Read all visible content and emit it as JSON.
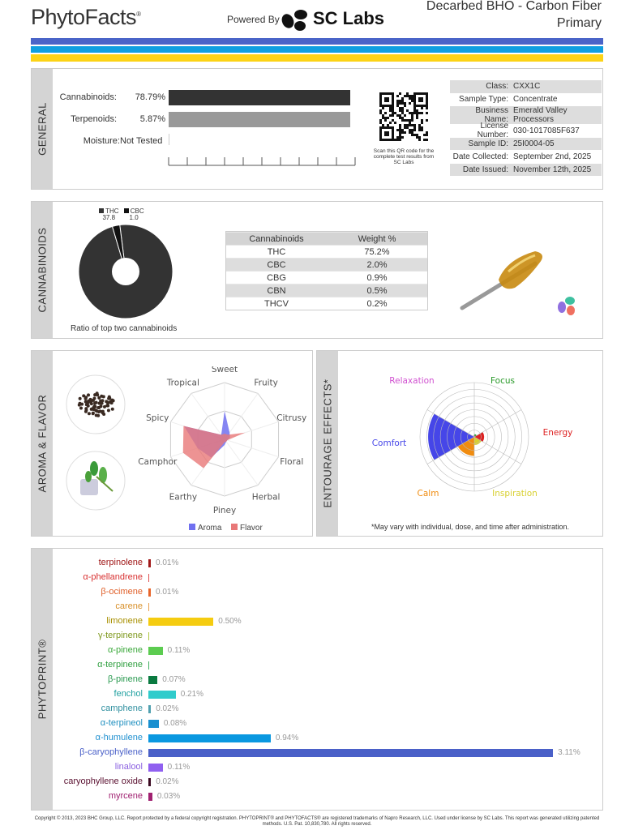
{
  "header": {
    "brand": "PhytoFacts",
    "brand_mark": "®",
    "powered_by": "Powered By",
    "lab_logo": "SC Labs",
    "product_name": "Decarbed BHO - Carbon Fiber",
    "product_subtitle": "Primary"
  },
  "stripes": [
    "#4a64c8",
    "#0f9fe0",
    "#fcd316"
  ],
  "general": {
    "title": "GENERAL",
    "bars": [
      {
        "label": "Cannabinoids:",
        "value": "78.79%",
        "fraction": 0.7879,
        "color": "#333333"
      },
      {
        "label": "Terpenoids:",
        "value": "5.87%",
        "fraction": 0.0587,
        "color": "#999999"
      },
      {
        "label": "Moisture:",
        "value": "Not Tested",
        "fraction": 0
      }
    ],
    "qr_caption": "Scan this QR code for the complete test results from SC Labs",
    "info": [
      {
        "k": "Class:",
        "v": "CXX1C"
      },
      {
        "k": "Sample Type:",
        "v": "Concentrate"
      },
      {
        "k": "Business Name:",
        "v": "Emerald Valley Processors"
      },
      {
        "k": "License Number:",
        "v": "030-1017085F637"
      },
      {
        "k": "Sample ID:",
        "v": "25I0004-05"
      },
      {
        "k": "Date Collected:",
        "v": "September 2nd, 2025"
      },
      {
        "k": "Date Issued:",
        "v": "November 12th, 2025"
      }
    ]
  },
  "cannabinoids": {
    "title": "CANNABINOIDS",
    "donut": {
      "caption": "Ratio of top two cannabinoids",
      "slices": [
        {
          "name": "THC",
          "value": 37.8,
          "label": "37.8",
          "color": "#333333"
        },
        {
          "name": "CBC",
          "value": 1.0,
          "label": "1.0",
          "color": "#111111"
        }
      ]
    },
    "table": {
      "headers": [
        "Cannabinoids",
        "Weight %"
      ],
      "rows": [
        [
          "THC",
          "75.2%"
        ],
        [
          "CBC",
          "2.0%"
        ],
        [
          "CBG",
          "0.9%"
        ],
        [
          "CBN",
          "0.5%"
        ],
        [
          "THCV",
          "0.2%"
        ]
      ]
    }
  },
  "aroma": {
    "title": "AROMA & FLAVOR",
    "chart_data": {
      "type": "radar",
      "axes": [
        "Sweet",
        "Fruity",
        "Citrusy",
        "Floral",
        "Herbal",
        "Piney",
        "Earthy",
        "Camphor",
        "Spicy",
        "Tropical"
      ],
      "range": [
        0,
        1
      ],
      "series": [
        {
          "name": "Aroma",
          "color": "#7070f0",
          "values": [
            0.5,
            0.15,
            0.1,
            0.05,
            0.05,
            0.1,
            0.4,
            0.5,
            0.75,
            0.1
          ]
        },
        {
          "name": "Flavor",
          "color": "#e87878",
          "values": [
            0.1,
            0.1,
            0.38,
            0.05,
            0.05,
            0.05,
            0.63,
            0.77,
            0.76,
            0.1
          ]
        }
      ],
      "legend": "bottom"
    }
  },
  "entourage": {
    "title": "ENTOURAGE EFFECTS*",
    "note": "*May vary with individual, dose, and time after administration.",
    "chart_data": {
      "type": "polar-area",
      "range": [
        0,
        1
      ],
      "categories": [
        {
          "name": "Focus",
          "value": 0.05,
          "color": "#2a9a2a"
        },
        {
          "name": "Energy",
          "value": 0.18,
          "color": "#dd2222"
        },
        {
          "name": "Inspiration",
          "value": 0.15,
          "color": "#d8d030"
        },
        {
          "name": "Calm",
          "value": 0.35,
          "color": "#f08c10"
        },
        {
          "name": "Comfort",
          "value": 0.85,
          "color": "#4646e8"
        },
        {
          "name": "Relaxation",
          "value": 0.03,
          "color": "#d050d0"
        }
      ]
    }
  },
  "phytoprint": {
    "title": "PHYTOPRINT®",
    "chart_data": {
      "type": "bar",
      "orientation": "horizontal",
      "unit": "%",
      "items": [
        {
          "name": "terpinolene",
          "value": 0.01,
          "label": "0.01%",
          "color": "#a01818",
          "bar": "#a01818"
        },
        {
          "name": "α-phellandrene",
          "value": 0.0,
          "label": "",
          "color": "#d83030",
          "bar": "#e05050"
        },
        {
          "name": "β-ocimene",
          "value": 0.01,
          "label": "0.01%",
          "color": "#e0602a",
          "bar": "#e8642a"
        },
        {
          "name": "carene",
          "value": 0.0,
          "label": "",
          "color": "#d8902a",
          "bar": "#e8a050"
        },
        {
          "name": "limonene",
          "value": 0.5,
          "label": "0.50%",
          "color": "#a89000",
          "bar": "#f5cc10"
        },
        {
          "name": "γ-terpinene",
          "value": 0.0,
          "label": "",
          "color": "#809a20",
          "bar": "#b0c840"
        },
        {
          "name": "α-pinene",
          "value": 0.11,
          "label": "0.11%",
          "color": "#3aa83a",
          "bar": "#5ccc50"
        },
        {
          "name": "α-terpinene",
          "value": 0.0,
          "label": "",
          "color": "#30a040",
          "bar": "#40b060"
        },
        {
          "name": "β-pinene",
          "value": 0.07,
          "label": "0.07%",
          "color": "#2a9a50",
          "bar": "#0a7a40"
        },
        {
          "name": "fenchol",
          "value": 0.21,
          "label": "0.21%",
          "color": "#20a0a0",
          "bar": "#30cccc"
        },
        {
          "name": "camphene",
          "value": 0.02,
          "label": "0.02%",
          "color": "#3090a0",
          "bar": "#50a0b0"
        },
        {
          "name": "α-terpineol",
          "value": 0.08,
          "label": "0.08%",
          "color": "#2090c0",
          "bar": "#1a90d0"
        },
        {
          "name": "α-humulene",
          "value": 0.94,
          "label": "0.94%",
          "color": "#2090d0",
          "bar": "#0a98e0"
        },
        {
          "name": "β-caryophyllene",
          "value": 3.11,
          "label": "3.11%",
          "color": "#4a60c8",
          "bar": "#4a60c8"
        },
        {
          "name": "linalool",
          "value": 0.11,
          "label": "0.11%",
          "color": "#8a60e0",
          "bar": "#9060f0"
        },
        {
          "name": "caryophyllene oxide",
          "value": 0.02,
          "label": "0.02%",
          "color": "#5a1030",
          "bar": "#3a0820"
        },
        {
          "name": "myrcene",
          "value": 0.03,
          "label": "0.03%",
          "color": "#a02070",
          "bar": "#a02070"
        }
      ]
    }
  },
  "footer": "Copyright © 2013, 2023 BHC Group, LLC. Report protected by a federal copyright registration. PHYTOPRINT® and PHYTOFACTS® are registered trademarks of Napro Research, LLC. Used under license by SC Labs. This report was generated utilizing patented methods. U.S. Pat. 10,830,780. All rights reserved."
}
